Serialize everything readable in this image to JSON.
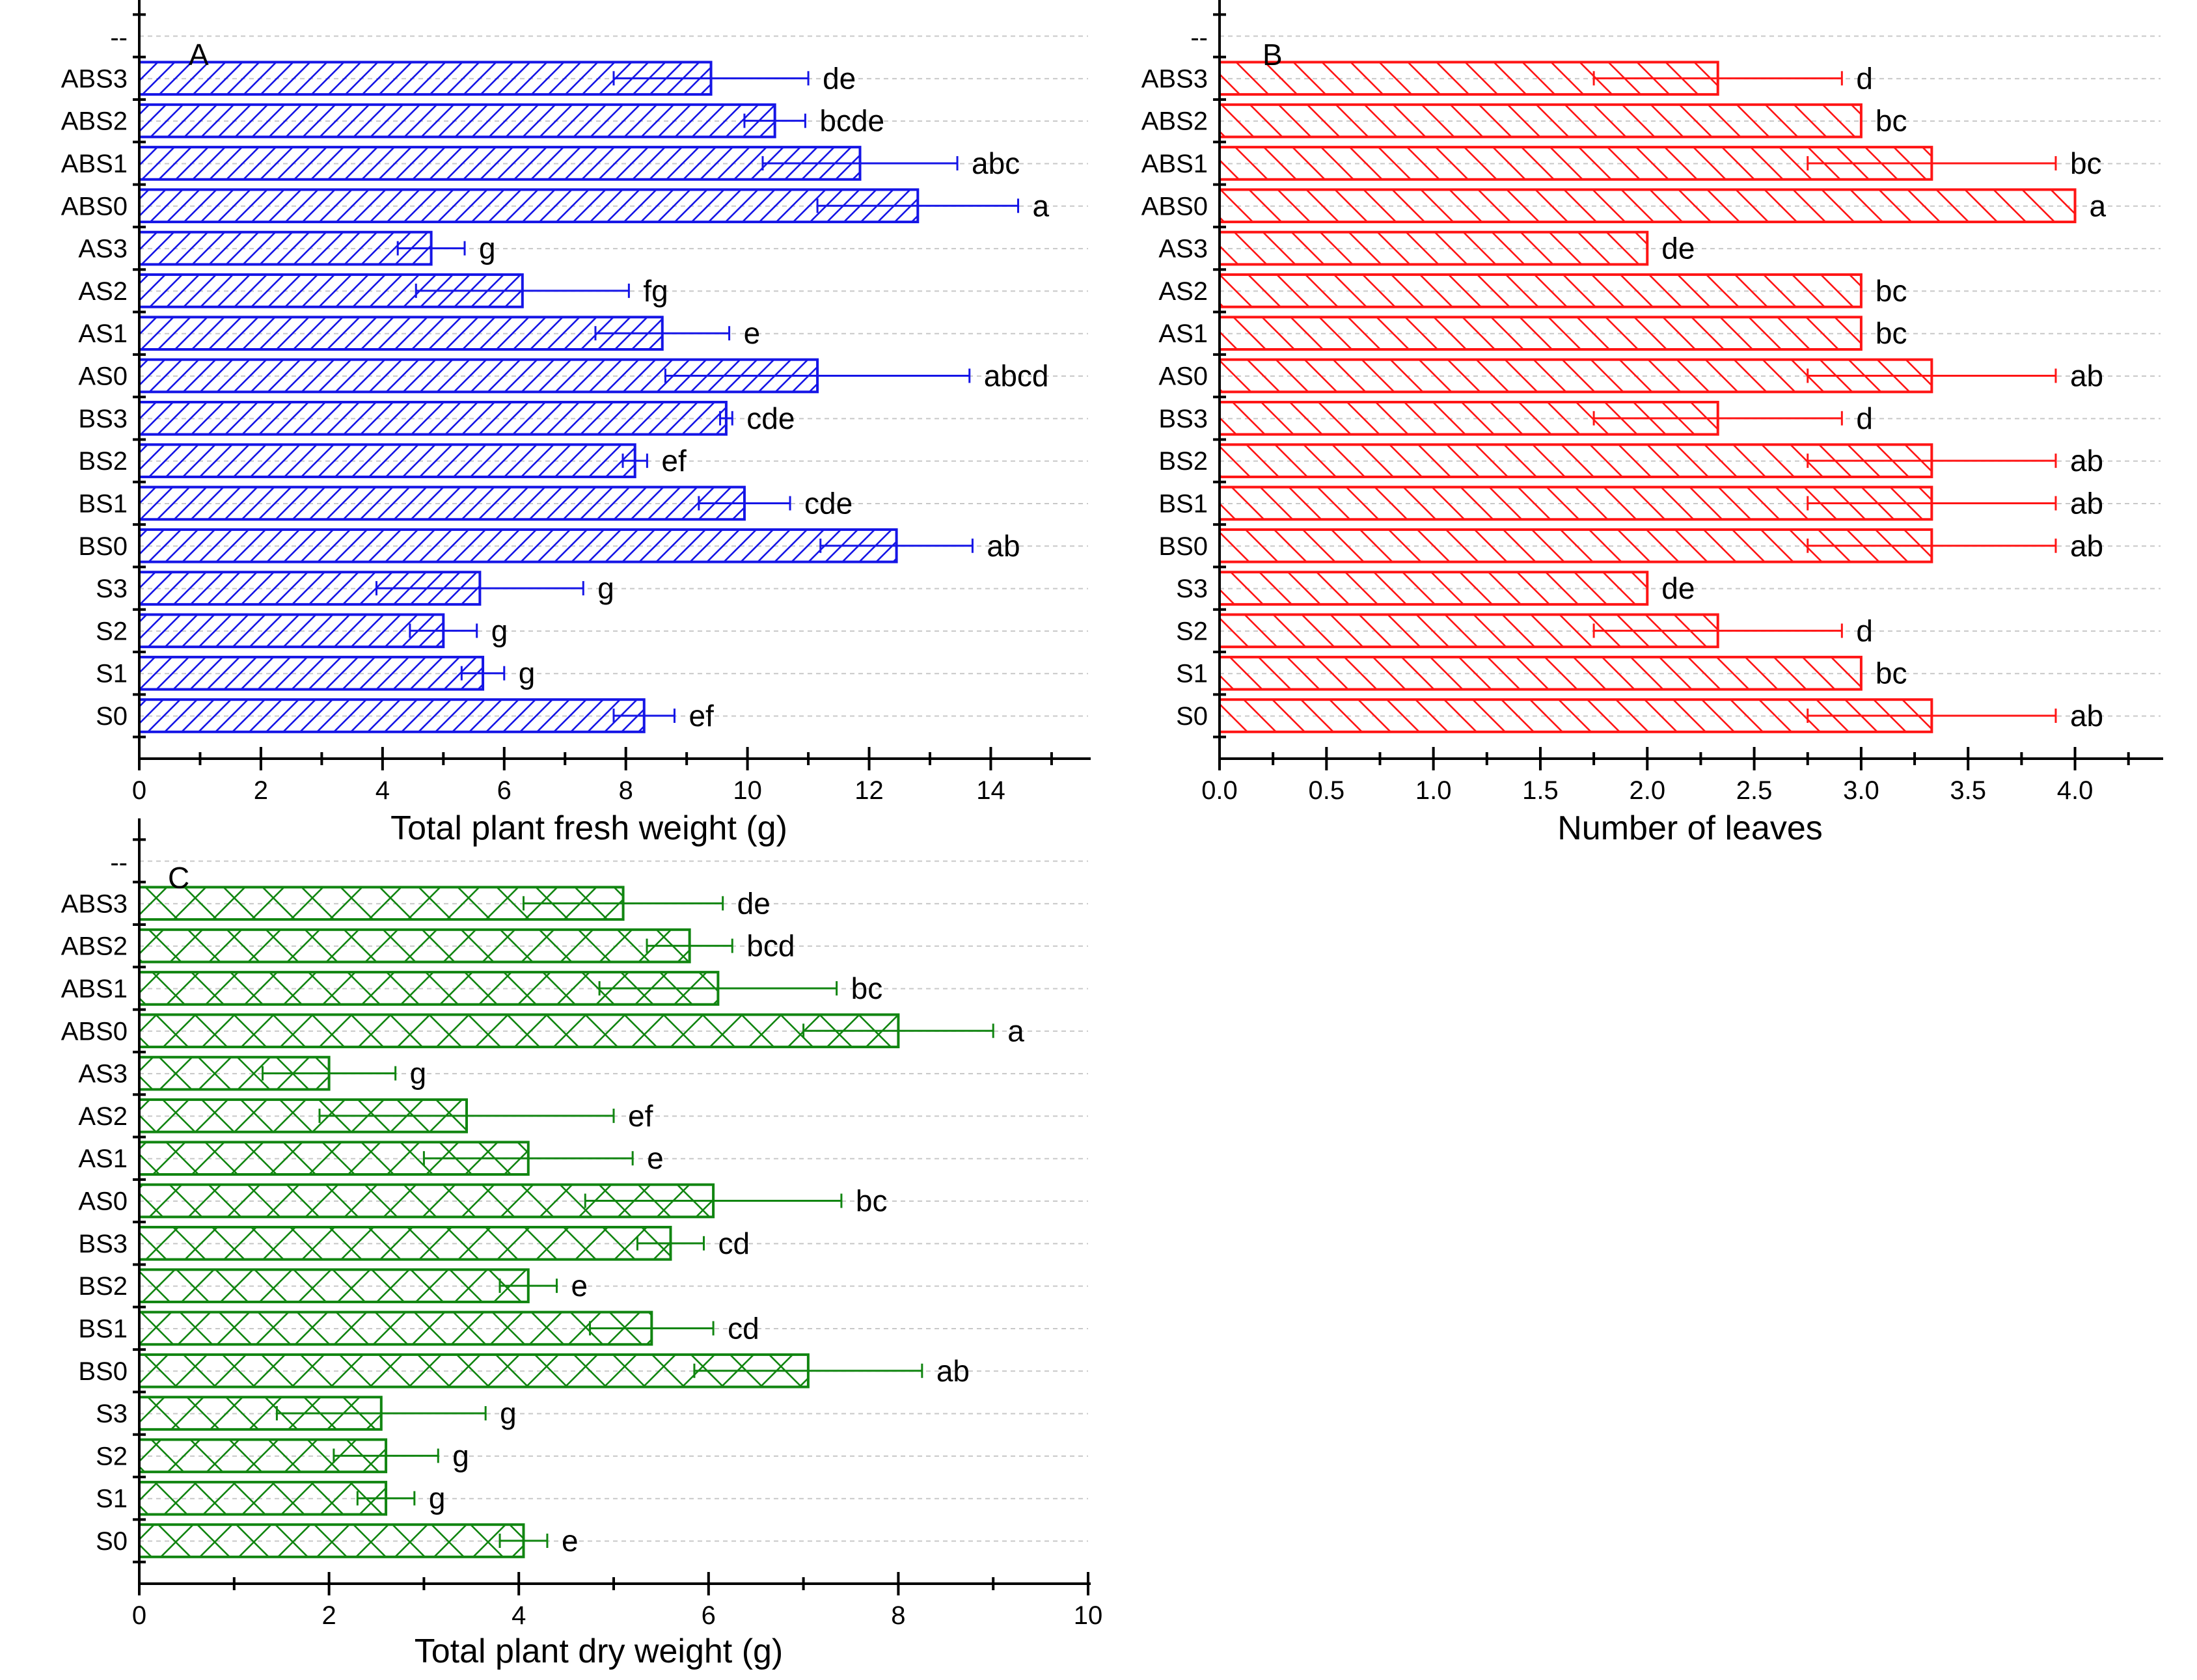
{
  "chart_data": [
    {
      "type": "bar",
      "orientation": "horizontal",
      "panel_label": "A",
      "top_tick_label": "--",
      "categories": [
        "ABS3",
        "ABS2",
        "ABS1",
        "ABS0",
        "AS3",
        "AS2",
        "AS1",
        "AS0",
        "BS3",
        "BS2",
        "BS1",
        "BS0",
        "S3",
        "S2",
        "S1",
        "S0"
      ],
      "values": [
        9.4,
        10.45,
        11.85,
        12.8,
        4.8,
        6.3,
        8.6,
        11.15,
        9.65,
        8.15,
        9.95,
        12.45,
        5.6,
        5.0,
        5.65,
        8.3
      ],
      "errors": [
        1.6,
        0.5,
        1.6,
        1.65,
        0.55,
        1.75,
        1.1,
        2.5,
        0.1,
        0.2,
        0.75,
        1.25,
        1.7,
        0.55,
        0.35,
        0.5
      ],
      "letters": [
        "de",
        "bcde",
        "abc",
        "a",
        "g",
        "fg",
        "e",
        "abcd",
        "cde",
        "ef",
        "cde",
        "ab",
        "g",
        "g",
        "g",
        "ef"
      ],
      "xlabel": "Total plant fresh weight (g)",
      "xlim": [
        0,
        15.6
      ],
      "xticks": [
        0,
        2,
        4,
        6,
        8,
        10,
        12,
        14
      ],
      "xtick_labels": [
        "0",
        "2",
        "4",
        "6",
        "8",
        "10",
        "12",
        "14"
      ],
      "color": "#1515e6",
      "hatch": "forward-diagonal",
      "grid": "horizontal dashed"
    },
    {
      "type": "bar",
      "orientation": "horizontal",
      "panel_label": "B",
      "top_tick_label": "--",
      "categories": [
        "ABS3",
        "ABS2",
        "ABS1",
        "ABS0",
        "AS3",
        "AS2",
        "AS1",
        "AS0",
        "BS3",
        "BS2",
        "BS1",
        "BS0",
        "S3",
        "S2",
        "S1",
        "S0"
      ],
      "values": [
        2.33,
        3.0,
        3.33,
        4.0,
        2.0,
        3.0,
        3.0,
        3.33,
        2.33,
        3.33,
        3.33,
        3.33,
        2.0,
        2.33,
        3.0,
        3.33
      ],
      "errors": [
        0.58,
        0,
        0.58,
        0,
        0,
        0,
        0,
        0.58,
        0.58,
        0.58,
        0.58,
        0.58,
        0,
        0.58,
        0,
        0.58
      ],
      "letters": [
        "d",
        "bc",
        "bc",
        "a",
        "de",
        "bc",
        "bc",
        "ab",
        "d",
        "ab",
        "ab",
        "ab",
        "de",
        "d",
        "bc",
        "ab"
      ],
      "xlabel": "Number of leaves",
      "xlim": [
        0,
        4.4
      ],
      "xticks": [
        0,
        0.5,
        1.0,
        1.5,
        2.0,
        2.5,
        3.0,
        3.5,
        4.0
      ],
      "xtick_labels": [
        "0.0",
        "0.5",
        "1.0",
        "1.5",
        "2.0",
        "2.5",
        "3.0",
        "3.5",
        "4.0"
      ],
      "color": "#ff1515",
      "hatch": "backward-diagonal",
      "grid": "horizontal dashed"
    },
    {
      "type": "bar",
      "orientation": "horizontal",
      "panel_label": "C",
      "top_tick_label": "--",
      "categories": [
        "ABS3",
        "ABS2",
        "ABS1",
        "ABS0",
        "AS3",
        "AS2",
        "AS1",
        "AS0",
        "BS3",
        "BS2",
        "BS1",
        "BS0",
        "S3",
        "S2",
        "S1",
        "S0"
      ],
      "values": [
        5.1,
        5.8,
        6.1,
        8.0,
        2.0,
        3.45,
        4.1,
        6.05,
        5.6,
        4.1,
        5.4,
        7.05,
        2.55,
        2.6,
        2.6,
        4.05
      ],
      "errors": [
        1.05,
        0.45,
        1.25,
        1.0,
        0.7,
        1.55,
        1.1,
        1.35,
        0.35,
        0.3,
        0.65,
        1.2,
        1.1,
        0.55,
        0.3,
        0.25
      ],
      "letters": [
        "de",
        "bcd",
        "bc",
        "a",
        "g",
        "ef",
        "e",
        "bc",
        "cd",
        "e",
        "cd",
        "ab",
        "g",
        "g",
        "g",
        "e"
      ],
      "xlabel": "Total plant dry weight (g)",
      "xlim": [
        0,
        10
      ],
      "xticks": [
        0,
        2,
        4,
        6,
        8,
        10
      ],
      "xtick_labels": [
        "0",
        "2",
        "4",
        "6",
        "8",
        "10"
      ],
      "color": "#118511",
      "hatch": "crosshatch",
      "grid": "horizontal dashed"
    }
  ]
}
